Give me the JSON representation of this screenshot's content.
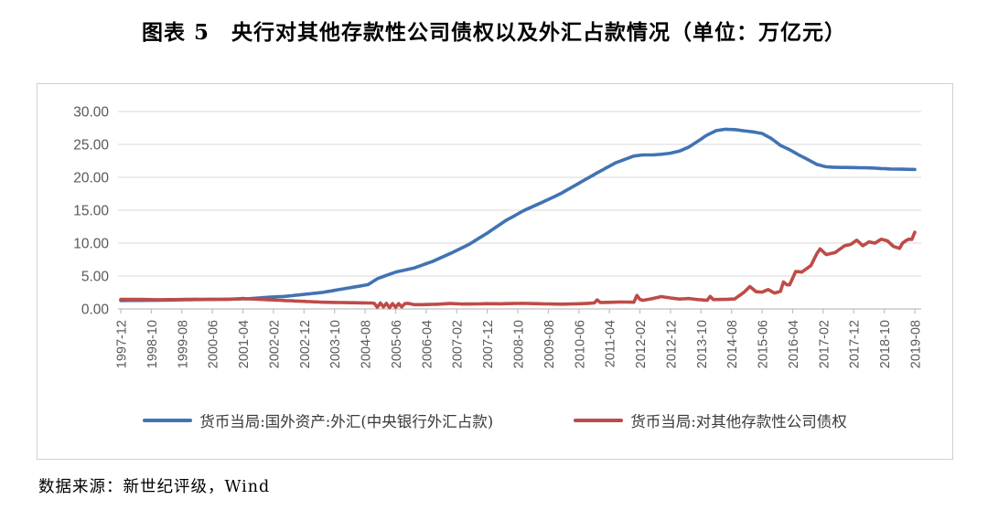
{
  "title": "图表 5　央行对其他存款性公司债权以及外汇占款情况（单位：万亿元）",
  "source": "数据来源：新世纪评级，Wind",
  "colors": {
    "series_fx_blue": "#4173B3",
    "series_claims_red": "#BE4B48",
    "gridline": "#D9D9D9",
    "axis_line": "#BFBFBF",
    "tick_mark": "#BFBFBF",
    "axis_label": "#595959"
  },
  "chart_data": {
    "type": "line",
    "title": "央行对其他存款性公司债权以及外汇占款情况",
    "unit": "万亿元",
    "ylim": [
      0,
      30
    ],
    "grid": "horizontal",
    "legend_position": "bottom",
    "y_tick_labels": [
      "30.00",
      "25.00",
      "20.00",
      "15.00",
      "10.00",
      "5.00",
      "0.00"
    ],
    "x_tick_labels": [
      "1997-12",
      "1998-10",
      "1999-08",
      "2000-06",
      "2001-04",
      "2002-02",
      "2002-12",
      "2003-10",
      "2004-08",
      "2005-06",
      "2006-04",
      "2007-02",
      "2007-12",
      "2008-10",
      "2009-08",
      "2010-06",
      "2011-04",
      "2012-02",
      "2012-12",
      "2013-10",
      "2014-08",
      "2015-06",
      "2016-04",
      "2017-02",
      "2017-12",
      "2018-10",
      "2019-08"
    ],
    "x_label_month_interval": 10,
    "x_month_count": 261,
    "series": [
      {
        "name": "货币当局:国外资产:外汇(中央银行外汇占款)",
        "color_key": "series_fx_blue",
        "anchors": [
          [
            0,
            1.28
          ],
          [
            12,
            1.31
          ],
          [
            24,
            1.41
          ],
          [
            36,
            1.48
          ],
          [
            42,
            1.56
          ],
          [
            48,
            1.77
          ],
          [
            54,
            1.92
          ],
          [
            60,
            2.21
          ],
          [
            66,
            2.5
          ],
          [
            72,
            2.98
          ],
          [
            78,
            3.45
          ],
          [
            81,
            3.7
          ],
          [
            84,
            4.59
          ],
          [
            90,
            5.6
          ],
          [
            96,
            6.21
          ],
          [
            102,
            7.2
          ],
          [
            108,
            8.44
          ],
          [
            114,
            9.8
          ],
          [
            120,
            11.52
          ],
          [
            126,
            13.4
          ],
          [
            132,
            14.96
          ],
          [
            138,
            16.2
          ],
          [
            144,
            17.51
          ],
          [
            150,
            19.1
          ],
          [
            156,
            20.68
          ],
          [
            162,
            22.2
          ],
          [
            168,
            23.24
          ],
          [
            171,
            23.4
          ],
          [
            174,
            23.4
          ],
          [
            177,
            23.5
          ],
          [
            180,
            23.67
          ],
          [
            183,
            24.0
          ],
          [
            186,
            24.6
          ],
          [
            189,
            25.5
          ],
          [
            192,
            26.43
          ],
          [
            195,
            27.1
          ],
          [
            198,
            27.3
          ],
          [
            201,
            27.25
          ],
          [
            204,
            27.07
          ],
          [
            207,
            26.9
          ],
          [
            210,
            26.66
          ],
          [
            213,
            25.9
          ],
          [
            216,
            24.85
          ],
          [
            219,
            24.2
          ],
          [
            222,
            23.4
          ],
          [
            225,
            22.7
          ],
          [
            228,
            21.94
          ],
          [
            231,
            21.6
          ],
          [
            234,
            21.52
          ],
          [
            240,
            21.48
          ],
          [
            246,
            21.42
          ],
          [
            252,
            21.26
          ],
          [
            260,
            21.2
          ]
        ]
      },
      {
        "name": "货币当局:对其他存款性公司债权",
        "color_key": "series_claims_red",
        "anchors": [
          [
            0,
            1.44
          ],
          [
            6,
            1.45
          ],
          [
            12,
            1.4
          ],
          [
            18,
            1.42
          ],
          [
            24,
            1.47
          ],
          [
            30,
            1.45
          ],
          [
            36,
            1.48
          ],
          [
            40,
            1.58
          ],
          [
            44,
            1.5
          ],
          [
            48,
            1.4
          ],
          [
            54,
            1.27
          ],
          [
            60,
            1.15
          ],
          [
            66,
            1.02
          ],
          [
            72,
            0.97
          ],
          [
            78,
            0.93
          ],
          [
            82,
            0.9
          ],
          [
            83,
            0.85
          ],
          [
            84,
            0.25
          ],
          [
            85,
            0.9
          ],
          [
            86,
            0.3
          ],
          [
            87,
            0.85
          ],
          [
            88,
            0.2
          ],
          [
            89,
            0.8
          ],
          [
            90,
            0.25
          ],
          [
            91,
            0.8
          ],
          [
            92,
            0.3
          ],
          [
            93,
            0.8
          ],
          [
            94,
            0.85
          ],
          [
            96,
            0.65
          ],
          [
            100,
            0.66
          ],
          [
            104,
            0.72
          ],
          [
            108,
            0.83
          ],
          [
            112,
            0.74
          ],
          [
            116,
            0.76
          ],
          [
            120,
            0.8
          ],
          [
            124,
            0.78
          ],
          [
            128,
            0.82
          ],
          [
            132,
            0.85
          ],
          [
            136,
            0.8
          ],
          [
            140,
            0.76
          ],
          [
            144,
            0.72
          ],
          [
            148,
            0.76
          ],
          [
            152,
            0.82
          ],
          [
            155,
            0.9
          ],
          [
            156,
            1.38
          ],
          [
            157,
            0.98
          ],
          [
            160,
            1.0
          ],
          [
            164,
            1.05
          ],
          [
            168,
            1.02
          ],
          [
            169,
            2.05
          ],
          [
            170,
            1.45
          ],
          [
            171,
            1.3
          ],
          [
            174,
            1.55
          ],
          [
            177,
            1.88
          ],
          [
            180,
            1.67
          ],
          [
            183,
            1.5
          ],
          [
            186,
            1.58
          ],
          [
            189,
            1.42
          ],
          [
            192,
            1.31
          ],
          [
            193,
            1.9
          ],
          [
            194,
            1.42
          ],
          [
            198,
            1.45
          ],
          [
            201,
            1.52
          ],
          [
            204,
            2.5
          ],
          [
            206,
            3.4
          ],
          [
            208,
            2.62
          ],
          [
            210,
            2.55
          ],
          [
            212,
            2.95
          ],
          [
            214,
            2.42
          ],
          [
            216,
            2.66
          ],
          [
            217,
            4.1
          ],
          [
            218,
            3.7
          ],
          [
            219,
            3.65
          ],
          [
            221,
            5.7
          ],
          [
            223,
            5.6
          ],
          [
            226,
            6.6
          ],
          [
            228,
            8.47
          ],
          [
            229,
            9.13
          ],
          [
            231,
            8.25
          ],
          [
            234,
            8.59
          ],
          [
            237,
            9.6
          ],
          [
            239,
            9.8
          ],
          [
            241,
            10.45
          ],
          [
            243,
            9.6
          ],
          [
            245,
            10.2
          ],
          [
            247,
            10.0
          ],
          [
            249,
            10.6
          ],
          [
            251,
            10.35
          ],
          [
            253,
            9.5
          ],
          [
            255,
            9.2
          ],
          [
            256,
            10.0
          ],
          [
            257,
            10.35
          ],
          [
            258,
            10.6
          ],
          [
            259,
            10.55
          ],
          [
            260,
            11.65
          ]
        ]
      }
    ]
  }
}
